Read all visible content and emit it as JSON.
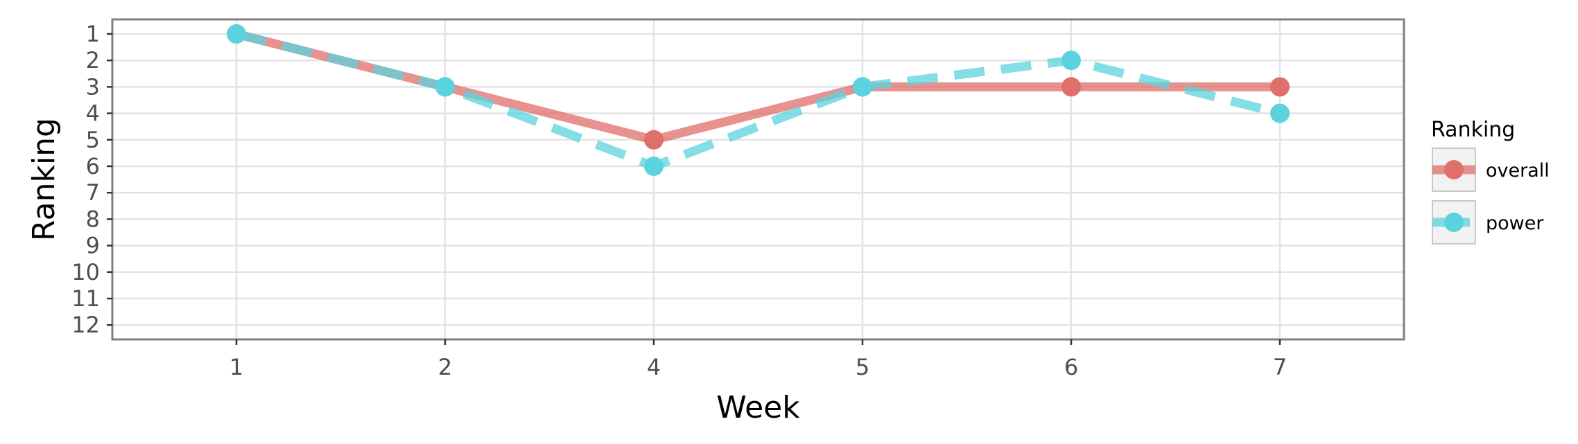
{
  "chart_data": {
    "type": "line",
    "title": "",
    "xlabel": "Week",
    "ylabel": "Ranking",
    "categories": [
      "1",
      "2",
      "4",
      "5",
      "6",
      "7"
    ],
    "y_ticks": [
      "1",
      "2",
      "3",
      "4",
      "5",
      "6",
      "7",
      "8",
      "9",
      "10",
      "11",
      "12"
    ],
    "ylim": [
      1,
      12
    ],
    "y_reversed": true,
    "grid": true,
    "legend": {
      "title": "Ranking",
      "position": "right"
    },
    "series": [
      {
        "name": "overall",
        "values": [
          1,
          3,
          5,
          3,
          3,
          3
        ],
        "color": "#e06e6a",
        "dash": "solid"
      },
      {
        "name": "power",
        "values": [
          1,
          3,
          6,
          3,
          2,
          4
        ],
        "color": "#5bd3de",
        "dash": "dashed"
      }
    ]
  }
}
